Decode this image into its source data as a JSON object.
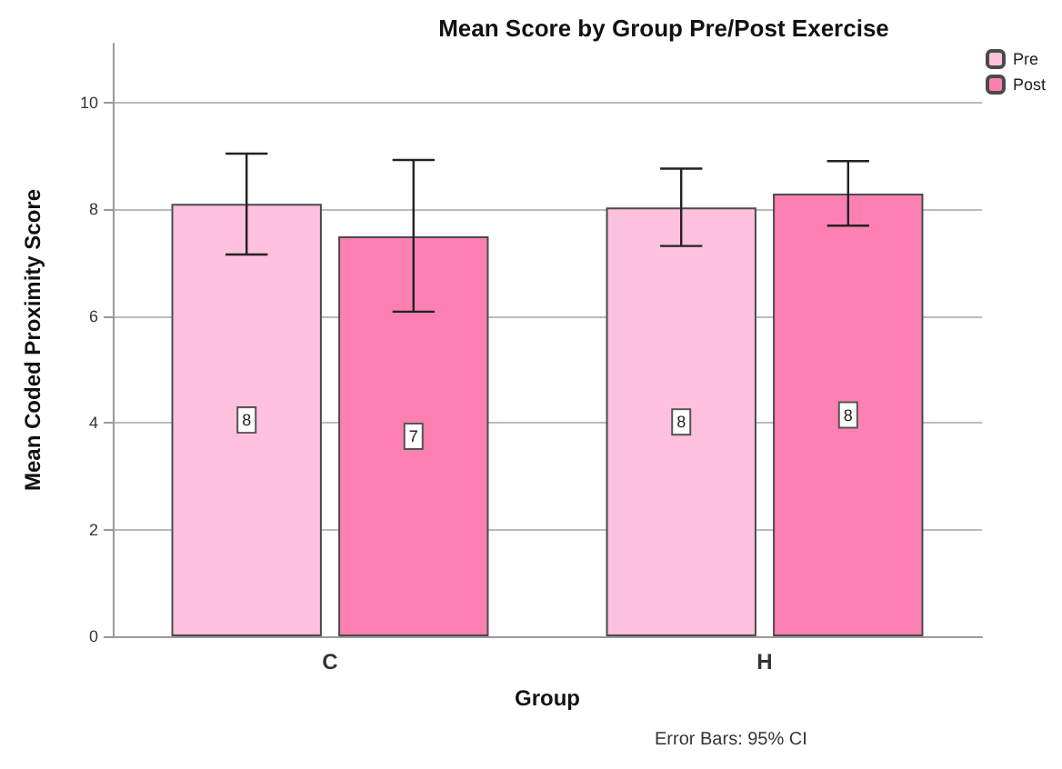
{
  "chart_data": {
    "type": "bar",
    "title": "Mean Score by Group Pre/Post Exercise",
    "xlabel": "Group",
    "ylabel": "Mean Coded Proximity Score",
    "annotations": [
      "Error Bars: 95% CI"
    ],
    "categories": [
      "C",
      "H"
    ],
    "series": [
      {
        "name": "Pre",
        "color": "#fdc0dd",
        "values": [
          8.1,
          8.03
        ],
        "errors": [
          [
            7.15,
            9.04
          ],
          [
            7.31,
            8.76
          ]
        ],
        "value_labels": [
          "8",
          "8"
        ]
      },
      {
        "name": "Post",
        "color": "#fd80b2",
        "values": [
          7.49,
          8.29
        ],
        "errors": [
          [
            6.08,
            8.92
          ],
          [
            7.69,
            8.9
          ]
        ],
        "value_labels": [
          "7",
          "8"
        ]
      }
    ],
    "ylim": [
      0,
      11.1
    ],
    "yticks": [
      0,
      2,
      4,
      6,
      8,
      10
    ],
    "grid": "y",
    "legend": "top right"
  }
}
